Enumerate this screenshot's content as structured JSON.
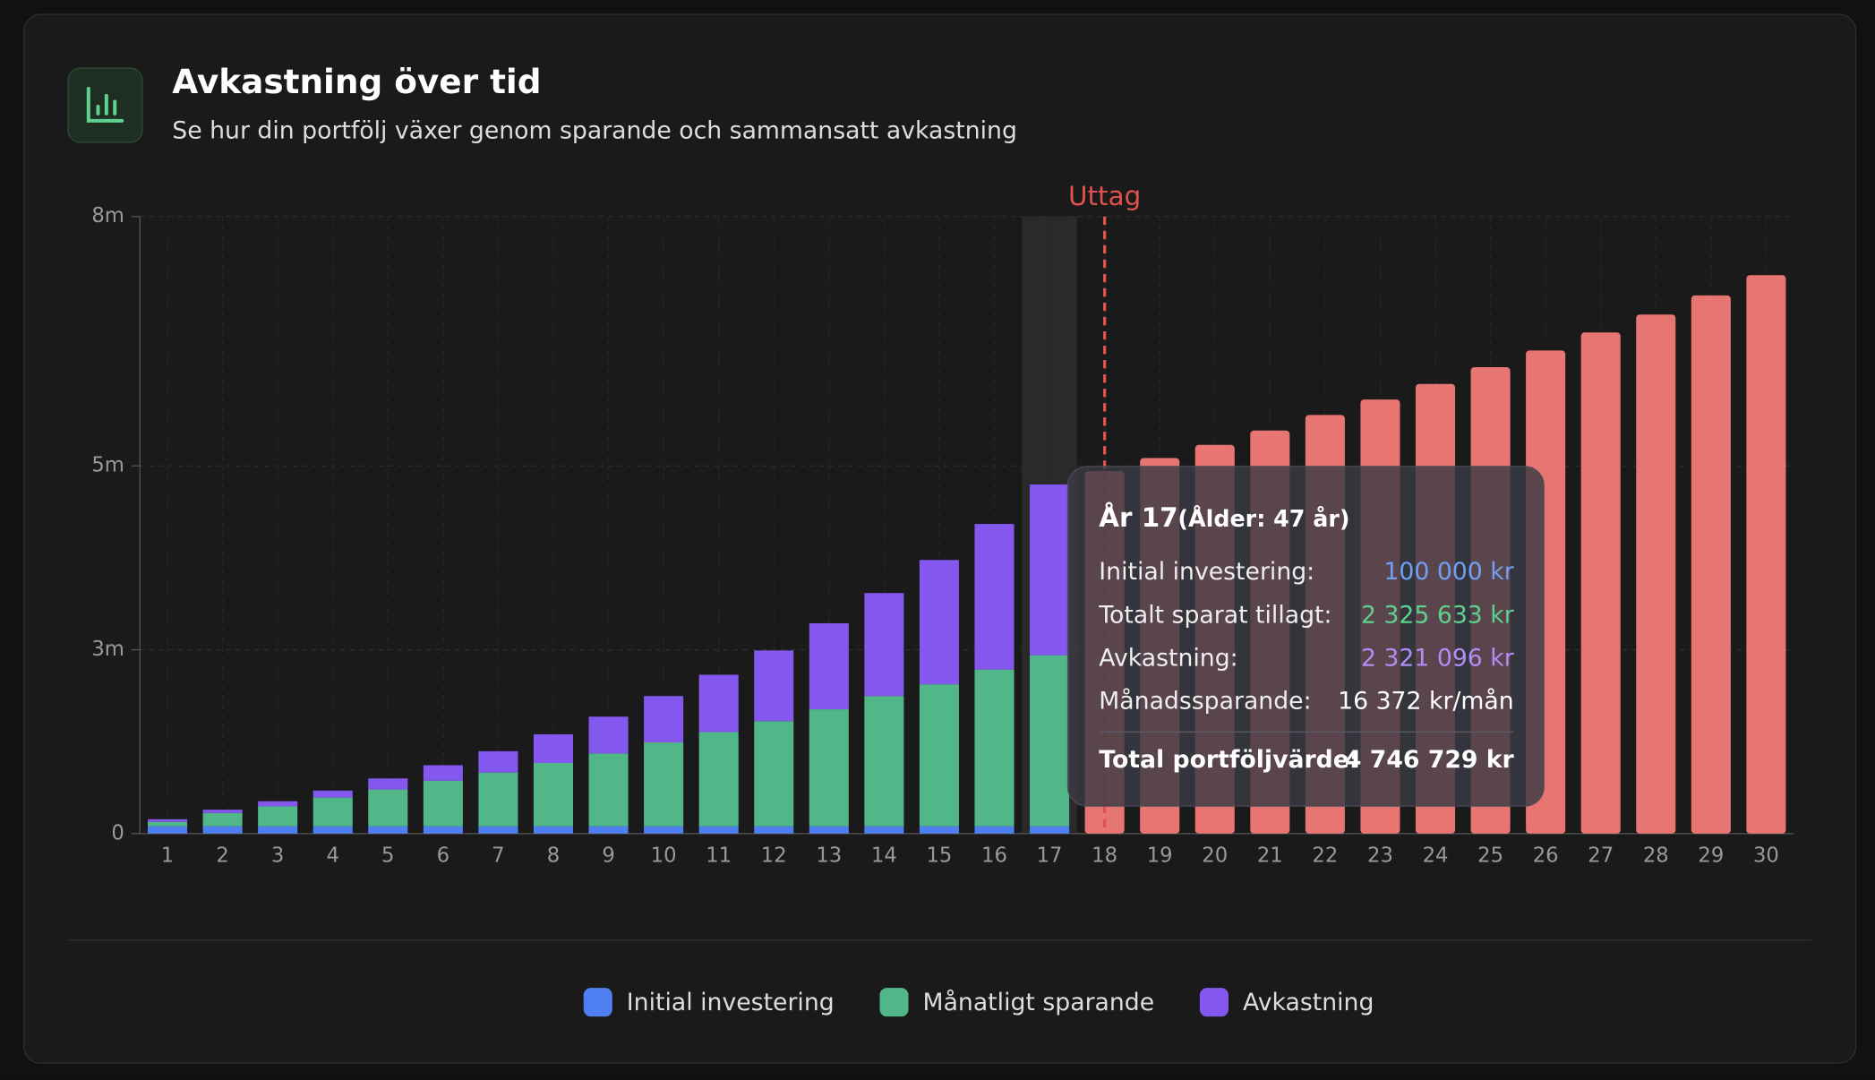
{
  "header": {
    "title": "Avkastning över tid",
    "subtitle": "Se hur din portfölj växer genom sparande och sammansatt avkastning"
  },
  "chart_data": {
    "type": "bar",
    "categories": [
      "1",
      "2",
      "3",
      "4",
      "5",
      "6",
      "7",
      "8",
      "9",
      "10",
      "11",
      "12",
      "13",
      "14",
      "15",
      "16",
      "17",
      "18",
      "19",
      "20",
      "21",
      "22",
      "23",
      "24",
      "25",
      "26",
      "27",
      "28",
      "29",
      "30"
    ],
    "series": [
      {
        "name": "Initial investering",
        "color": "#4f7ff0",
        "values": [
          100000,
          100000,
          100000,
          100000,
          100000,
          100000,
          100000,
          100000,
          100000,
          100000,
          100000,
          100000,
          100000,
          100000,
          100000,
          100000,
          100000,
          null,
          null,
          null,
          null,
          null,
          null,
          null,
          null,
          null,
          null,
          null,
          null,
          null
        ]
      },
      {
        "name": "Månatligt sparande",
        "color": "#52b788",
        "values": [
          60000,
          180000,
          270000,
          390000,
          500000,
          620000,
          730000,
          860000,
          990000,
          1140000,
          1280000,
          1430000,
          1590000,
          1770000,
          1930000,
          2130000,
          2325633,
          null,
          null,
          null,
          null,
          null,
          null,
          null,
          null,
          null,
          null,
          null,
          null,
          null
        ]
      },
      {
        "name": "Avkastning",
        "color": "#8458ef",
        "values": [
          35000,
          45000,
          70000,
          95000,
          150000,
          210000,
          290000,
          390000,
          500000,
          630000,
          780000,
          960000,
          1170000,
          1400000,
          1690000,
          1980000,
          2321096,
          null,
          null,
          null,
          null,
          null,
          null,
          null,
          null,
          null,
          null,
          null,
          null,
          null
        ]
      }
    ],
    "withdrawal": {
      "label": "Uttag",
      "color": "#e77672",
      "values": [
        null,
        null,
        null,
        null,
        null,
        null,
        null,
        null,
        null,
        null,
        null,
        null,
        null,
        null,
        null,
        null,
        null,
        4930000,
        5106000,
        5285000,
        5480000,
        5691000,
        5902000,
        6114000,
        6341000,
        6569000,
        6813000,
        7057000,
        7317000,
        7593000
      ]
    },
    "ylim": [
      0,
      8390000
    ],
    "yticks": [
      0,
      {
        "value": 2500000,
        "label": "3m"
      },
      {
        "value": 5000000,
        "label": "5m"
      },
      {
        "value": 8390000,
        "label": "8m"
      }
    ],
    "grid": true,
    "highlight": "17",
    "tooltip": {
      "title": "År 17",
      "subtitle": "(Ålder: 47 år)",
      "rows": [
        {
          "label": "Initial investering:",
          "value": "100 000 kr"
        },
        {
          "label": "Totalt sparat tillagt:",
          "value": "2 325 633 kr"
        },
        {
          "label": "Avkastning:",
          "value": "2 321 096 kr"
        },
        {
          "label": "Månadssparande:",
          "value": "16 372 kr/mån"
        }
      ],
      "total": {
        "label": "Total portföljvärde:",
        "value": "4 746 729 kr"
      }
    }
  }
}
